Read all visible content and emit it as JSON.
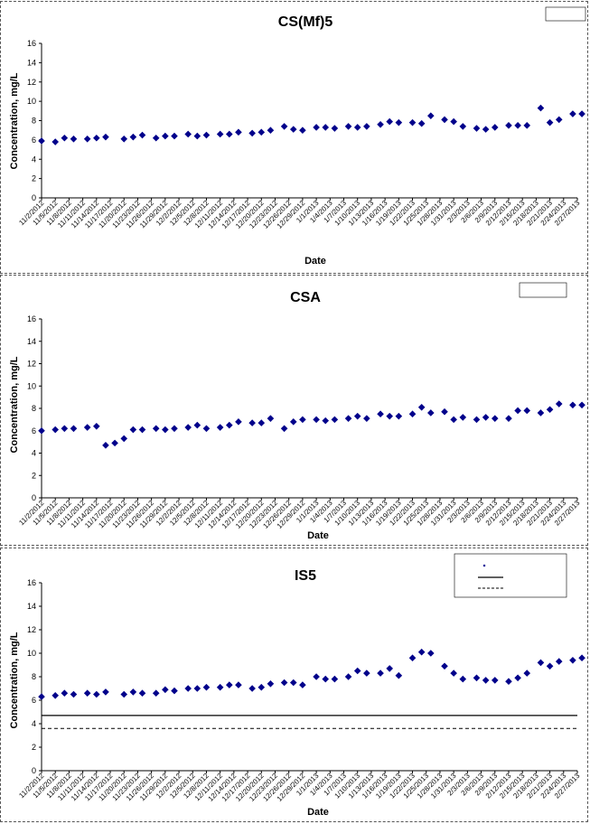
{
  "chart_data": [
    {
      "type": "scatter",
      "title": "CS(Mf)5",
      "xlabel": "Date",
      "ylabel": "Concentration, mg/L",
      "ylim": [
        0,
        16
      ],
      "yticks": [
        0,
        2,
        4,
        6,
        8,
        10,
        12,
        14,
        16
      ],
      "xlim": [
        "11/2/2012",
        "2/27/2013"
      ],
      "x_tick_labels": [
        "11/2/2012",
        "11/5/2012",
        "11/8/2012",
        "11/11/2012",
        "11/14/2012",
        "11/17/2012",
        "11/20/2012",
        "11/23/2012",
        "11/26/2012",
        "11/29/2012",
        "12/2/2012",
        "12/5/2012",
        "12/8/2012",
        "12/11/2012",
        "12/14/2012",
        "12/17/2012",
        "12/20/2012",
        "12/23/2012",
        "12/26/2012",
        "12/29/2012",
        "1/1/2013",
        "1/4/2013",
        "1/7/2013",
        "1/10/2013",
        "1/13/2013",
        "1/16/2013",
        "1/19/2013",
        "1/22/2013",
        "1/25/2013",
        "1/28/2013",
        "1/31/2013",
        "2/3/2013",
        "2/6/2013",
        "2/9/2013",
        "2/12/2013",
        "2/15/2013",
        "2/18/2013",
        "2/21/2013",
        "2/24/2013",
        "2/27/2013"
      ],
      "grid": false,
      "legend_position": "top-right",
      "marker_color": "#00008b",
      "series": [
        {
          "marker": "diamond",
          "x": [
            "11/2/2012",
            "11/5/2012",
            "11/7/2012",
            "11/9/2012",
            "11/12/2012",
            "11/14/2012",
            "11/16/2012",
            "11/20/2012",
            "11/22/2012",
            "11/24/2012",
            "11/27/2012",
            "11/29/2012",
            "12/1/2012",
            "12/4/2012",
            "12/6/2012",
            "12/8/2012",
            "12/11/2012",
            "12/13/2012",
            "12/15/2012",
            "12/18/2012",
            "12/20/2012",
            "12/22/2012",
            "12/25/2012",
            "12/27/2012",
            "12/29/2012",
            "1/1/2013",
            "1/3/2013",
            "1/5/2013",
            "1/8/2013",
            "1/10/2013",
            "1/12/2013",
            "1/15/2013",
            "1/17/2013",
            "1/19/2013",
            "1/22/2013",
            "1/24/2013",
            "1/26/2013",
            "1/29/2013",
            "1/31/2013",
            "2/2/2013",
            "2/5/2013",
            "2/7/2013",
            "2/9/2013",
            "2/12/2013",
            "2/14/2013",
            "2/16/2013",
            "2/19/2013",
            "2/21/2013",
            "2/23/2013",
            "2/26/2013",
            "2/28/2013"
          ],
          "y": [
            5.9,
            5.8,
            6.2,
            6.1,
            6.1,
            6.2,
            6.3,
            6.1,
            6.3,
            6.5,
            6.2,
            6.4,
            6.4,
            6.6,
            6.4,
            6.5,
            6.6,
            6.6,
            6.8,
            6.7,
            6.8,
            7.0,
            7.4,
            7.1,
            7.0,
            7.3,
            7.3,
            7.2,
            7.4,
            7.3,
            7.4,
            7.6,
            7.9,
            7.8,
            7.8,
            7.7,
            8.5,
            8.1,
            7.9,
            7.4,
            7.2,
            7.1,
            7.3,
            7.5,
            7.5,
            7.5,
            9.3,
            7.8,
            8.1,
            8.7,
            8.7
          ]
        }
      ],
      "ref_lines": []
    },
    {
      "type": "scatter",
      "title": "CSA",
      "xlabel": "Date",
      "ylabel": "Concentration, mg/L",
      "ylim": [
        0,
        16
      ],
      "yticks": [
        0,
        2,
        4,
        6,
        8,
        10,
        12,
        14,
        16
      ],
      "xlim": [
        "11/2/2012",
        "2/27/2013"
      ],
      "x_tick_labels": [
        "11/2/2012",
        "11/5/2012",
        "11/8/2012",
        "11/11/2012",
        "11/14/2012",
        "11/17/2012",
        "11/20/2012",
        "11/23/2012",
        "11/26/2012",
        "11/29/2012",
        "12/2/2012",
        "12/5/2012",
        "12/8/2012",
        "12/11/2012",
        "12/14/2012",
        "12/17/2012",
        "12/20/2012",
        "12/23/2012",
        "12/26/2012",
        "12/29/2012",
        "1/1/2013",
        "1/4/2013",
        "1/7/2013",
        "1/10/2013",
        "1/13/2013",
        "1/16/2013",
        "1/19/2013",
        "1/22/2013",
        "1/25/2013",
        "1/28/2013",
        "1/31/2013",
        "2/3/2013",
        "2/6/2013",
        "2/9/2013",
        "2/12/2013",
        "2/15/2013",
        "2/18/2013",
        "2/21/2013",
        "2/24/2013",
        "2/27/2013"
      ],
      "grid": false,
      "legend_position": "top-right",
      "marker_color": "#00008b",
      "series": [
        {
          "marker": "diamond",
          "x": [
            "11/2/2012",
            "11/5/2012",
            "11/7/2012",
            "11/9/2012",
            "11/12/2012",
            "11/14/2012",
            "11/16/2012",
            "11/18/2012",
            "11/20/2012",
            "11/22/2012",
            "11/24/2012",
            "11/27/2012",
            "11/29/2012",
            "12/1/2012",
            "12/4/2012",
            "12/6/2012",
            "12/8/2012",
            "12/11/2012",
            "12/13/2012",
            "12/15/2012",
            "12/18/2012",
            "12/20/2012",
            "12/22/2012",
            "12/25/2012",
            "12/27/2012",
            "12/29/2012",
            "1/1/2013",
            "1/3/2013",
            "1/5/2013",
            "1/8/2013",
            "1/10/2013",
            "1/12/2013",
            "1/15/2013",
            "1/17/2013",
            "1/19/2013",
            "1/22/2013",
            "1/24/2013",
            "1/26/2013",
            "1/29/2013",
            "1/31/2013",
            "2/2/2013",
            "2/5/2013",
            "2/7/2013",
            "2/9/2013",
            "2/12/2013",
            "2/14/2013",
            "2/16/2013",
            "2/19/2013",
            "2/21/2013",
            "2/23/2013",
            "2/26/2013",
            "2/28/2013"
          ],
          "y": [
            6.0,
            6.1,
            6.2,
            6.2,
            6.3,
            6.4,
            4.7,
            4.9,
            5.3,
            6.1,
            6.1,
            6.2,
            6.1,
            6.2,
            6.3,
            6.5,
            6.2,
            6.3,
            6.5,
            6.8,
            6.7,
            6.7,
            7.1,
            6.2,
            6.8,
            7.0,
            7.0,
            6.9,
            7.0,
            7.1,
            7.3,
            7.1,
            7.5,
            7.3,
            7.3,
            7.5,
            8.1,
            7.6,
            7.7,
            7.0,
            7.2,
            7.0,
            7.2,
            7.1,
            7.1,
            7.8,
            7.8,
            7.6,
            7.9,
            8.4,
            8.3,
            8.3
          ]
        }
      ],
      "ref_lines": []
    },
    {
      "type": "scatter",
      "title": "IS5",
      "xlabel": "Date",
      "ylabel": "Concentration, mg/L",
      "ylim": [
        0,
        16
      ],
      "yticks": [
        0,
        2,
        4,
        6,
        8,
        10,
        12,
        14,
        16
      ],
      "xlim": [
        "11/2/2012",
        "2/27/2013"
      ],
      "x_tick_labels": [
        "11/2/2012",
        "11/5/2012",
        "11/8/2012",
        "11/11/2012",
        "11/14/2012",
        "11/17/2012",
        "11/20/2012",
        "11/23/2012",
        "11/26/2012",
        "11/29/2012",
        "12/2/2012",
        "12/5/2012",
        "12/8/2012",
        "12/11/2012",
        "12/14/2012",
        "12/17/2012",
        "12/20/2012",
        "12/23/2012",
        "12/26/2012",
        "12/29/2012",
        "1/1/2013",
        "1/4/2013",
        "1/7/2013",
        "1/10/2013",
        "1/13/2013",
        "1/16/2013",
        "1/19/2013",
        "1/22/2013",
        "1/25/2013",
        "1/28/2013",
        "1/31/2013",
        "2/3/2013",
        "2/6/2013",
        "2/9/2013",
        "2/12/2013",
        "2/15/2013",
        "2/18/2013",
        "2/21/2013",
        "2/24/2013",
        "2/27/2013"
      ],
      "grid": false,
      "legend_position": "top-right",
      "marker_color": "#00008b",
      "series": [
        {
          "marker": "diamond",
          "x": [
            "11/2/2012",
            "11/5/2012",
            "11/7/2012",
            "11/9/2012",
            "11/12/2012",
            "11/14/2012",
            "11/16/2012",
            "11/20/2012",
            "11/22/2012",
            "11/24/2012",
            "11/27/2012",
            "11/29/2012",
            "12/1/2012",
            "12/4/2012",
            "12/6/2012",
            "12/8/2012",
            "12/11/2012",
            "12/13/2012",
            "12/15/2012",
            "12/18/2012",
            "12/20/2012",
            "12/22/2012",
            "12/25/2012",
            "12/27/2012",
            "12/29/2012",
            "1/1/2013",
            "1/3/2013",
            "1/5/2013",
            "1/8/2013",
            "1/10/2013",
            "1/12/2013",
            "1/15/2013",
            "1/17/2013",
            "1/19/2013",
            "1/22/2013",
            "1/24/2013",
            "1/26/2013",
            "1/29/2013",
            "1/31/2013",
            "2/2/2013",
            "2/5/2013",
            "2/7/2013",
            "2/9/2013",
            "2/12/2013",
            "2/14/2013",
            "2/16/2013",
            "2/19/2013",
            "2/21/2013",
            "2/23/2013",
            "2/26/2013",
            "2/28/2013"
          ],
          "y": [
            6.3,
            6.4,
            6.6,
            6.5,
            6.6,
            6.5,
            6.7,
            6.5,
            6.7,
            6.6,
            6.6,
            6.9,
            6.8,
            7.0,
            7.0,
            7.1,
            7.1,
            7.3,
            7.3,
            7.0,
            7.1,
            7.4,
            7.5,
            7.5,
            7.3,
            8.0,
            7.8,
            7.8,
            8.0,
            8.5,
            8.3,
            8.3,
            8.7,
            8.1,
            9.6,
            10.1,
            10.0,
            8.9,
            8.3,
            7.8,
            7.9,
            7.7,
            7.7,
            7.6,
            7.9,
            8.3,
            9.2,
            8.9,
            9.3,
            9.4,
            9.6
          ]
        }
      ],
      "ref_lines": [
        {
          "y": 4.7,
          "style": "solid"
        },
        {
          "y": 3.6,
          "style": "dashed"
        }
      ]
    }
  ]
}
